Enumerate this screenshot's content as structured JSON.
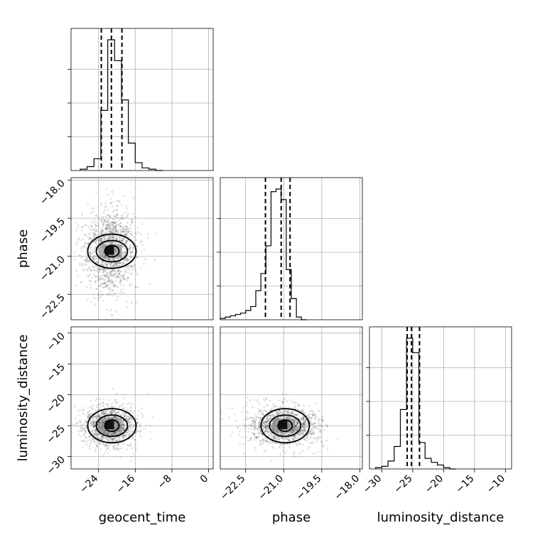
{
  "chart_data": {
    "type": "corner",
    "parameters": [
      "geocent_time",
      "phase",
      "luminosity_distance"
    ],
    "grid": true,
    "axes": {
      "geocent_time": {
        "range": [
          -30,
          1
        ],
        "ticks": [
          -24,
          -16,
          -8,
          0
        ],
        "tick_labels": [
          "−24",
          "−16",
          "−8",
          "0"
        ]
      },
      "phase": {
        "range": [
          -23.5,
          -17.9
        ],
        "ticks": [
          -22.5,
          -21.0,
          -19.5,
          -18.0
        ],
        "tick_labels": [
          "−22.5",
          "−21.0",
          "−19.5",
          "−18.0"
        ]
      },
      "luminosity_distance": {
        "range": [
          -32,
          -9
        ],
        "ticks": [
          -30,
          -25,
          -20,
          -15,
          -10
        ],
        "tick_labels": [
          "−30",
          "−25",
          "−20",
          "−15",
          "−10"
        ]
      }
    },
    "histograms": [
      {
        "parameter": "geocent_time",
        "bin_edges": [
          -28,
          -26.5,
          -25,
          -23.5,
          -22,
          -20.5,
          -19,
          -17.5,
          -16,
          -14.5,
          -13,
          -11.5,
          -10
        ],
        "counts": [
          1,
          3,
          9,
          46,
          100,
          84,
          54,
          21,
          6,
          2,
          1,
          0
        ],
        "quantiles": [
          -23.4,
          -21.2,
          -18.9
        ]
      },
      {
        "parameter": "phase",
        "bin_edges": [
          -23.5,
          -23.3,
          -23.1,
          -22.9,
          -22.7,
          -22.5,
          -22.3,
          -22.1,
          -21.9,
          -21.7,
          -21.5,
          -21.3,
          -21.1,
          -20.9,
          -20.7,
          -20.5,
          -20.3,
          -20.1
        ],
        "counts": [
          1,
          2,
          3,
          4,
          5,
          7,
          10,
          22,
          35,
          56,
          97,
          99,
          91,
          38,
          16,
          2,
          0
        ],
        "quantiles": [
          -21.72,
          -21.1,
          -20.75
        ]
      },
      {
        "parameter": "luminosity_distance",
        "bin_edges": [
          -31,
          -30,
          -29,
          -28,
          -27,
          -26,
          -25,
          -24,
          -23,
          -22,
          -21,
          -20,
          -19,
          -18
        ],
        "counts": [
          1,
          2,
          6,
          17,
          45,
          99,
          88,
          20,
          8,
          5,
          3,
          1,
          0
        ],
        "quantiles": [
          -25.9,
          -25.2,
          -23.9
        ]
      }
    ],
    "scatter_panels": [
      {
        "x": "geocent_time",
        "y": "phase",
        "center": [
          -21.4,
          -20.8
        ],
        "spread": [
          2.9,
          0.8
        ],
        "contour_levels": 3
      },
      {
        "x": "geocent_time",
        "y": "luminosity_distance",
        "center": [
          -21.4,
          -25.0
        ],
        "spread": [
          2.9,
          1.6
        ],
        "contour_levels": 3
      },
      {
        "x": "phase",
        "y": "luminosity_distance",
        "center": [
          -21.0,
          -25.0
        ],
        "spread": [
          0.7,
          1.6
        ],
        "contour_levels": 3
      }
    ]
  }
}
